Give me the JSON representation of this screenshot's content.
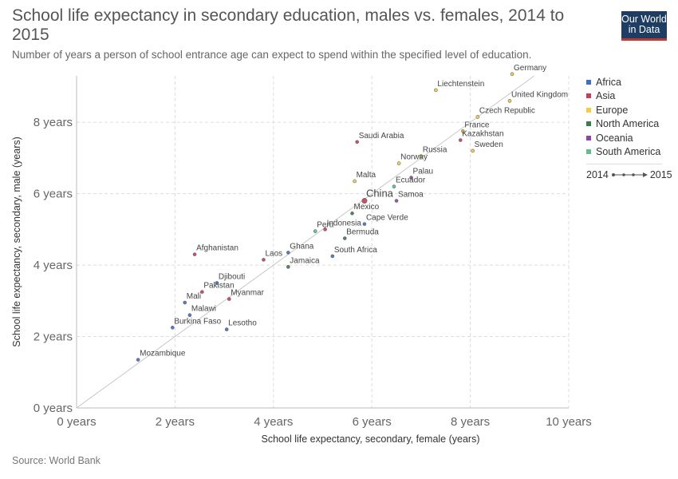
{
  "header": {
    "title": "School life expectancy in secondary education, males vs. females, 2014 to 2015",
    "subtitle": "Number of years a person of school entrance age can expect to spend within the specified level of education.",
    "logo_line1": "Our World",
    "logo_line2": "in Data"
  },
  "source": "Source: World Bank",
  "legend": {
    "items": [
      {
        "label": "Africa",
        "color": "#3f6fc5"
      },
      {
        "label": "Asia",
        "color": "#c43e5a"
      },
      {
        "label": "Europe",
        "color": "#f5cd3c"
      },
      {
        "label": "North America",
        "color": "#3a7e4a"
      },
      {
        "label": "Oceania",
        "color": "#8e44ad"
      },
      {
        "label": "South America",
        "color": "#5cc28a"
      }
    ],
    "time_start": "2014",
    "time_end": "2015"
  },
  "chart_data": {
    "type": "scatter",
    "title": "School life expectancy in secondary education, males vs. females, 2014 to 2015",
    "xlabel": "School life expectancy, secondary, female (years)",
    "ylabel": "School life expectancy, secondary, male (years)",
    "xlim": [
      0,
      10
    ],
    "ylim": [
      0,
      9.3
    ],
    "x_ticks": [
      {
        "value": 0,
        "label": "0 years"
      },
      {
        "value": 2,
        "label": "2 years"
      },
      {
        "value": 4,
        "label": "4 years"
      },
      {
        "value": 6,
        "label": "6 years"
      },
      {
        "value": 8,
        "label": "8 years"
      },
      {
        "value": 10,
        "label": "10 years"
      }
    ],
    "y_ticks": [
      {
        "value": 0,
        "label": "0 years"
      },
      {
        "value": 2,
        "label": "2 years"
      },
      {
        "value": 4,
        "label": "4 years"
      },
      {
        "value": 6,
        "label": "6 years"
      },
      {
        "value": 8,
        "label": "8 years"
      }
    ],
    "grid": true,
    "reference_line": "y = x",
    "legend_position": "right",
    "points": [
      {
        "name": "Liechtenstein",
        "x": 7.3,
        "y": 8.9,
        "region": "Europe"
      },
      {
        "name": "Germany",
        "x": 8.85,
        "y": 9.35,
        "region": "Europe"
      },
      {
        "name": "United Kingdom",
        "x": 8.8,
        "y": 8.6,
        "region": "Europe"
      },
      {
        "name": "Czech Republic",
        "x": 8.15,
        "y": 8.15,
        "region": "Europe"
      },
      {
        "name": "France",
        "x": 7.85,
        "y": 7.75,
        "region": "Europe"
      },
      {
        "name": "Kazakhstan",
        "x": 7.8,
        "y": 7.5,
        "region": "Asia"
      },
      {
        "name": "Sweden",
        "x": 8.05,
        "y": 7.2,
        "region": "Europe"
      },
      {
        "name": "Russia",
        "x": 7.0,
        "y": 7.05,
        "region": "Europe"
      },
      {
        "name": "Saudi Arabia",
        "x": 5.7,
        "y": 7.45,
        "region": "Asia"
      },
      {
        "name": "Norway",
        "x": 6.55,
        "y": 6.85,
        "region": "Europe"
      },
      {
        "name": "Palau",
        "x": 6.8,
        "y": 6.45,
        "region": "Oceania"
      },
      {
        "name": "Malta",
        "x": 5.65,
        "y": 6.35,
        "region": "Europe"
      },
      {
        "name": "Ecuador",
        "x": 6.45,
        "y": 6.2,
        "region": "South America"
      },
      {
        "name": "China",
        "x": 5.85,
        "y": 5.8,
        "region": "Asia"
      },
      {
        "name": "Samoa",
        "x": 6.5,
        "y": 5.8,
        "region": "Oceania"
      },
      {
        "name": "Mexico",
        "x": 5.6,
        "y": 5.45,
        "region": "North America"
      },
      {
        "name": "Cape Verde",
        "x": 5.85,
        "y": 5.15,
        "region": "Africa"
      },
      {
        "name": "Indonesia",
        "x": 5.05,
        "y": 5.0,
        "region": "Asia"
      },
      {
        "name": "Peru",
        "x": 4.85,
        "y": 4.95,
        "region": "South America"
      },
      {
        "name": "Bermuda",
        "x": 5.45,
        "y": 4.75,
        "region": "North America"
      },
      {
        "name": "Afghanistan",
        "x": 2.4,
        "y": 4.3,
        "region": "Asia"
      },
      {
        "name": "Laos",
        "x": 3.8,
        "y": 4.15,
        "region": "Asia"
      },
      {
        "name": "Ghana",
        "x": 4.3,
        "y": 4.35,
        "region": "Africa"
      },
      {
        "name": "South Africa",
        "x": 5.2,
        "y": 4.25,
        "region": "Africa"
      },
      {
        "name": "Jamaica",
        "x": 4.3,
        "y": 3.95,
        "region": "North America"
      },
      {
        "name": "Djibouti",
        "x": 2.85,
        "y": 3.5,
        "region": "Africa"
      },
      {
        "name": "Pakistan",
        "x": 2.55,
        "y": 3.25,
        "region": "Asia"
      },
      {
        "name": "Myanmar",
        "x": 3.1,
        "y": 3.05,
        "region": "Asia"
      },
      {
        "name": "Mali",
        "x": 2.2,
        "y": 2.95,
        "region": "Africa"
      },
      {
        "name": "Malawi",
        "x": 2.3,
        "y": 2.6,
        "region": "Africa"
      },
      {
        "name": "Burkina Faso",
        "x": 1.95,
        "y": 2.25,
        "region": "Africa"
      },
      {
        "name": "Lesotho",
        "x": 3.05,
        "y": 2.2,
        "region": "Africa"
      },
      {
        "name": "Mozambique",
        "x": 1.25,
        "y": 1.35,
        "region": "Africa"
      }
    ]
  }
}
